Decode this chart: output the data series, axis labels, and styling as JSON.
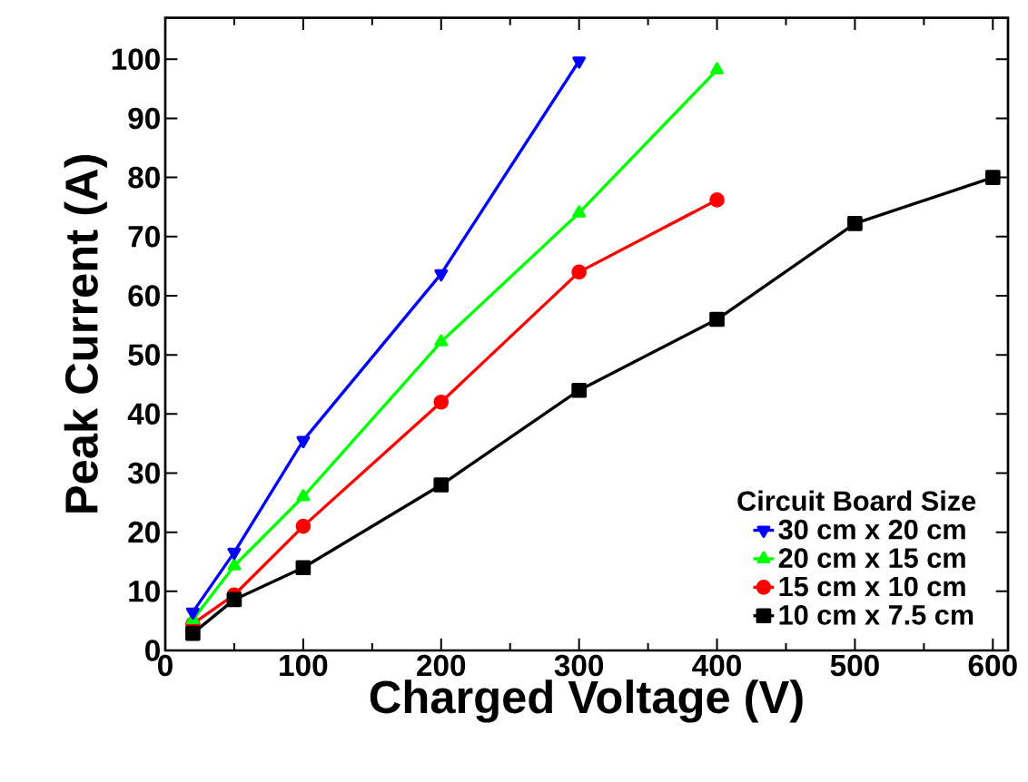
{
  "chart_data": {
    "type": "line",
    "xlabel": "Charged Voltage (V)",
    "ylabel": "Peak Current (A)",
    "legend_title": "Circuit Board Size",
    "legend": "bottom right",
    "grid": false,
    "line_style": "solid",
    "xlim": [
      0,
      611
    ],
    "xticks": [
      0,
      100,
      200,
      300,
      400,
      500,
      600
    ],
    "ylim": [
      0,
      107
    ],
    "yticks": [
      0,
      10,
      20,
      30,
      40,
      50,
      60,
      70,
      80,
      90,
      100
    ],
    "series": [
      {
        "name": "30 cm x 20 cm",
        "color": "#0000ff",
        "marker": "triangle-down",
        "x": [
          20,
          50,
          100,
          200,
          300
        ],
        "values": [
          6.5,
          16.6,
          35.5,
          63.7,
          99.7
        ]
      },
      {
        "name": "20 cm x 15 cm",
        "color": "#00ff00",
        "marker": "triangle",
        "x": [
          20,
          50,
          100,
          200,
          300,
          400
        ],
        "values": [
          5.2,
          14.3,
          26,
          52.2,
          74,
          98.2
        ]
      },
      {
        "name": "15 cm x 10 cm",
        "color": "#ff0000",
        "marker": "circle",
        "x": [
          20,
          50,
          100,
          200,
          300,
          400
        ],
        "values": [
          4.5,
          9.4,
          21,
          42,
          64,
          76.2
        ]
      },
      {
        "name": "10 cm x 7.5 cm",
        "color": "#000000",
        "marker": "square",
        "x": [
          20,
          50,
          100,
          200,
          300,
          400,
          500,
          600
        ],
        "values": [
          2.9,
          8.6,
          14,
          28,
          44,
          56,
          72.2,
          80
        ]
      }
    ]
  }
}
